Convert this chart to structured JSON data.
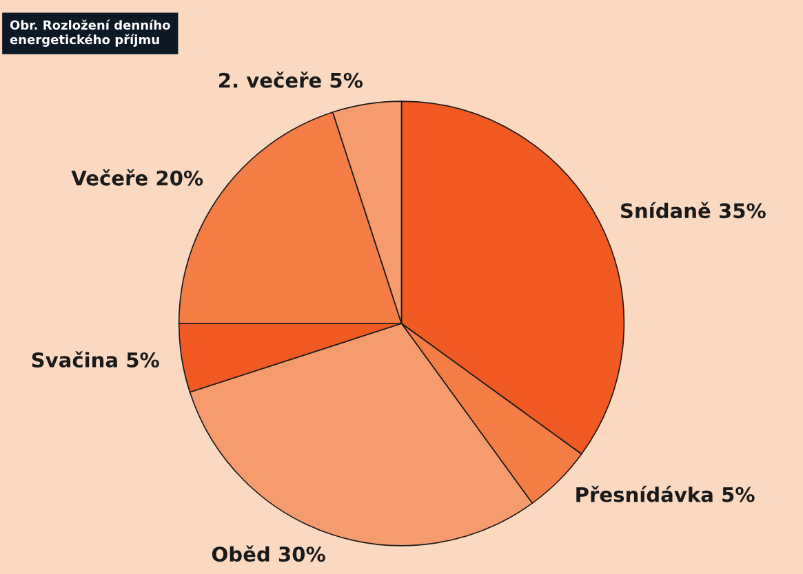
{
  "chart_data": {
    "type": "pie",
    "title": "Obr. Rozložení denního\nenergetického příjmu",
    "categories": [
      "Snídaně",
      "Přesnídávka",
      "Oběd",
      "Svačina",
      "Večeře",
      "2. večeře"
    ],
    "values": [
      35,
      5,
      30,
      5,
      20,
      5
    ],
    "value_labels": [
      "35%",
      "5%",
      "30%",
      "5%",
      "20%",
      "5%"
    ],
    "colors": [
      "#f05a22",
      "#f37d45",
      "#f59b6e",
      "#f05a22",
      "#f37d45",
      "#f59b6e"
    ]
  }
}
